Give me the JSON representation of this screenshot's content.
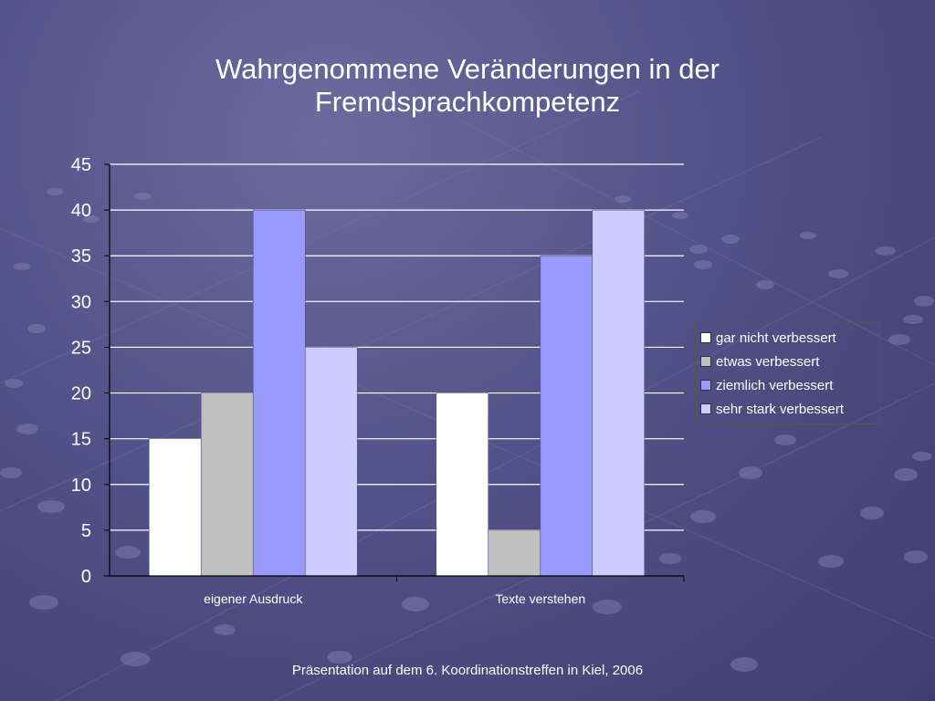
{
  "slide": {
    "title": "Wahrgenommene Veränderungen in der\nFremdsprachkompetenz",
    "footer": "Präsentation auf dem 6. Koordinationstreffen in Kiel, 2006"
  },
  "colors": {
    "background": "#52528a",
    "gridline": "#ffffff",
    "axis_text": "#ffffff"
  },
  "chart_data": {
    "type": "bar",
    "categories": [
      "eigener Ausdruck",
      "Texte verstehen"
    ],
    "series": [
      {
        "name": "gar nicht verbessert",
        "values": [
          15,
          20
        ],
        "color": "#ffffff"
      },
      {
        "name": "etwas verbessert",
        "values": [
          20,
          5
        ],
        "color": "#c0c0c0"
      },
      {
        "name": "ziemlich verbessert",
        "values": [
          40,
          35
        ],
        "color": "#9999ff"
      },
      {
        "name": "sehr stark verbessert",
        "values": [
          25,
          40
        ],
        "color": "#ccccff"
      }
    ],
    "ylim": [
      0,
      45
    ],
    "yticks": [
      0,
      5,
      10,
      15,
      20,
      25,
      30,
      35,
      40,
      45
    ],
    "grid": true,
    "legend_position": "right",
    "title": "",
    "xlabel": "",
    "ylabel": ""
  }
}
